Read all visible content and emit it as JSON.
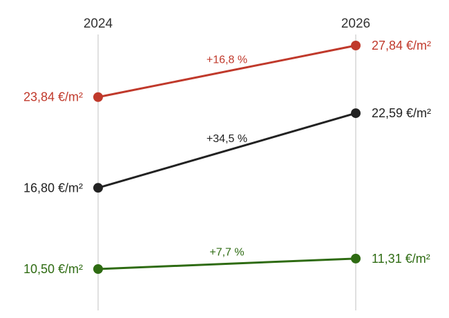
{
  "chart_data": {
    "type": "line",
    "x": [
      "2024",
      "2026"
    ],
    "series": [
      {
        "values": [
          23.84,
          27.84
        ],
        "labels": [
          "23,84 €/m²",
          "27,84 €/m²"
        ],
        "change": "+16,8 %",
        "color": "#c0392b"
      },
      {
        "values": [
          16.8,
          22.59
        ],
        "labels": [
          "16,80 €/m²",
          "22,59 €/m²"
        ],
        "change": "+34,5 %",
        "color": "#222222"
      },
      {
        "values": [
          10.5,
          11.31
        ],
        "labels": [
          "10,50 €/m²",
          "11,31 €/m²"
        ],
        "change": "+7,7 %",
        "color": "#2e6b12"
      }
    ],
    "grid": "vertical lines at each year",
    "legend": "none"
  }
}
